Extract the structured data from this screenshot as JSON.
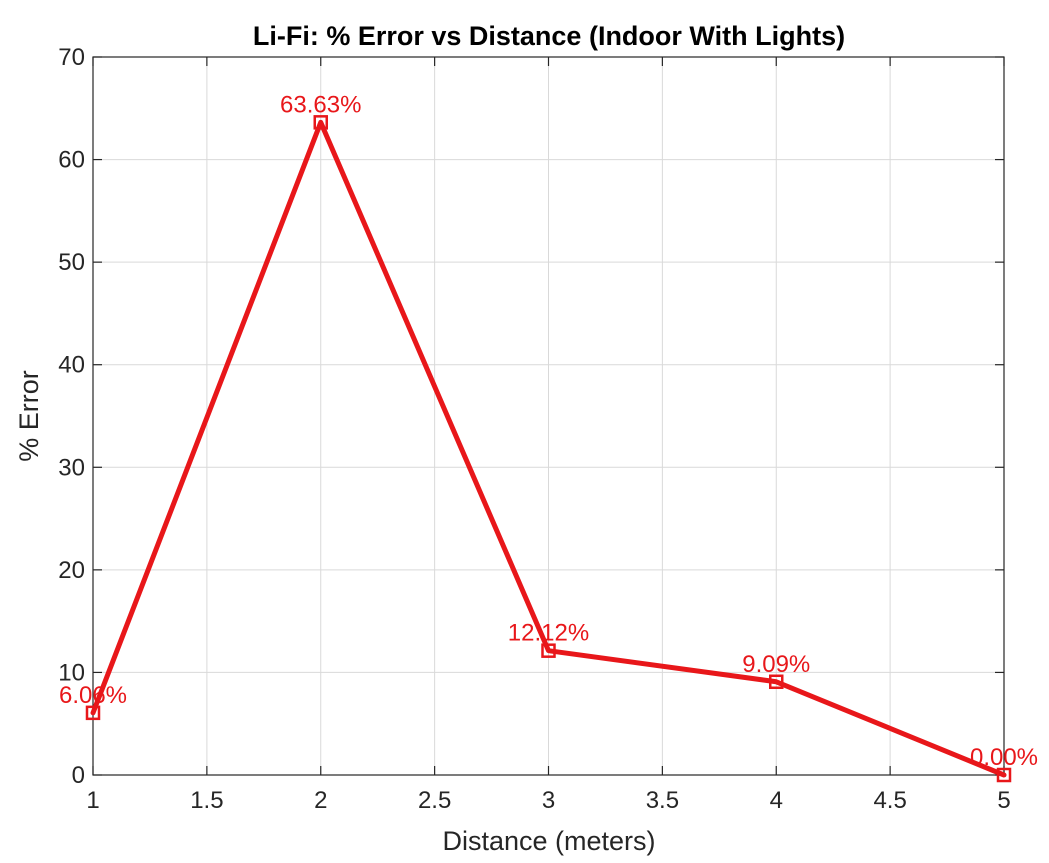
{
  "chart_data": {
    "type": "line",
    "title": "Li-Fi: % Error vs Distance (Indoor With Lights)",
    "xlabel": "Distance (meters)",
    "ylabel": "% Error",
    "xlim": [
      1,
      5
    ],
    "ylim": [
      0,
      70
    ],
    "xticks": [
      1,
      1.5,
      2,
      2.5,
      3,
      3.5,
      4,
      4.5,
      5
    ],
    "xtick_labels": [
      "1",
      "1.5",
      "2",
      "2.5",
      "3",
      "3.5",
      "4",
      "4.5",
      "5"
    ],
    "yticks": [
      0,
      10,
      20,
      30,
      40,
      50,
      60,
      70
    ],
    "ytick_labels": [
      "0",
      "10",
      "20",
      "30",
      "40",
      "50",
      "60",
      "70"
    ],
    "grid": true,
    "series": [
      {
        "color": "#e8171a",
        "marker": "square",
        "x": [
          1,
          2,
          3,
          4,
          5
        ],
        "y": [
          6.06,
          63.63,
          12.12,
          9.09,
          0.0
        ],
        "labels": [
          "6.06%",
          "63.63%",
          "12.12%",
          "9.09%",
          "0.00%"
        ]
      }
    ]
  }
}
